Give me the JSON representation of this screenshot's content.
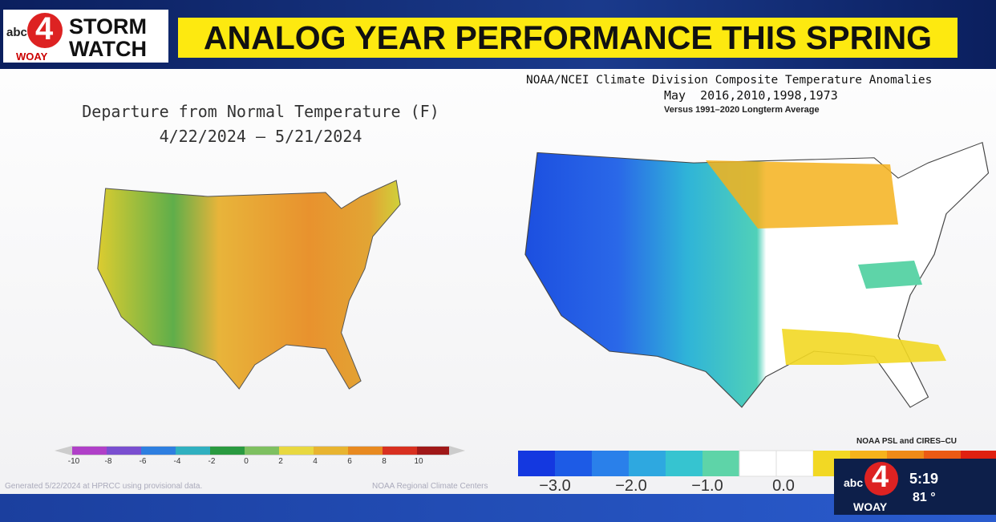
{
  "header": {
    "logo_network": "abc",
    "logo_number": "4",
    "logo_station": "WOAY",
    "brand_line1": "STORM",
    "brand_line2": "WATCH",
    "title": "ANALOG YEAR PERFORMANCE THIS SPRING"
  },
  "left_map": {
    "title": "Departure from Normal Temperature (F)",
    "subtitle": "4/22/2024 – 5/21/2024",
    "legend_labels": [
      "-10",
      "-8",
      "-6",
      "-4",
      "-2",
      "0",
      "2",
      "4",
      "6",
      "8",
      "10"
    ],
    "footer_left": "Generated 5/22/2024 at HPRCC using provisional data.",
    "footer_right": "NOAA Regional Climate Centers"
  },
  "right_map": {
    "title": "NOAA/NCEI Climate Division Composite Temperature Anomalies",
    "subtitle": "May  2016,2010,1998,1973",
    "note": "Versus 1991–2020 Longterm Average",
    "credit": "NOAA PSL and CIRES–CU",
    "legend_labels": [
      "−3.0",
      "−2.0",
      "−1.0",
      "0.0"
    ]
  },
  "bug": {
    "logo_network": "abc",
    "logo_number": "4",
    "logo_station": "WOAY",
    "time": "5:19",
    "temperature": "81 °"
  }
}
